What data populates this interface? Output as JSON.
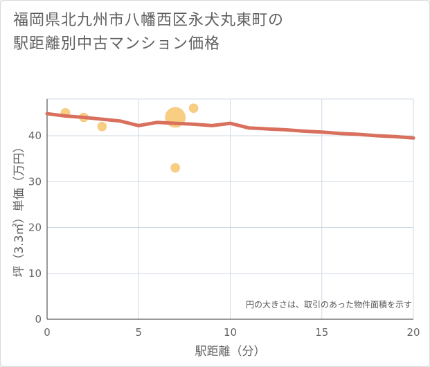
{
  "title_line1": "福岡県北九州市八幡西区永犬丸東町の",
  "title_line2": "駅距離別中古マンション価格",
  "chart_data": {
    "type": "scatter",
    "title": "福岡県北九州市八幡西区永犬丸東町の駅距離別中古マンション価格",
    "xlabel": "駅距離（分）",
    "ylabel": "坪（3.3㎡）単価（万円）",
    "xlim": [
      0,
      20
    ],
    "ylim": [
      0,
      48
    ],
    "xticks": [
      0,
      5,
      10,
      15,
      20
    ],
    "yticks": [
      0,
      10,
      20,
      30,
      40
    ],
    "grid": true,
    "note": "円の大きさは、取引のあった物件面積を示す",
    "points": [
      {
        "x": 1,
        "y": 45,
        "size": 1
      },
      {
        "x": 2,
        "y": 44,
        "size": 1
      },
      {
        "x": 3,
        "y": 42,
        "size": 1
      },
      {
        "x": 7,
        "y": 44,
        "size": 5
      },
      {
        "x": 7,
        "y": 33,
        "size": 1
      },
      {
        "x": 8,
        "y": 46,
        "size": 1
      }
    ],
    "trend": {
      "name": "trend",
      "x": [
        0,
        1,
        2,
        3,
        4,
        5,
        6,
        7,
        8,
        9,
        10,
        11,
        12,
        13,
        14,
        15,
        16,
        17,
        18,
        19,
        20
      ],
      "y": [
        44.8,
        44.3,
        44.0,
        43.6,
        43.2,
        42.2,
        42.9,
        42.7,
        42.5,
        42.2,
        42.7,
        41.7,
        41.5,
        41.3,
        41.0,
        40.8,
        40.5,
        40.3,
        40.0,
        39.8,
        39.5
      ]
    },
    "colors": {
      "point": "#f5b94f",
      "point_stroke": "#eea23a",
      "trend": "#d9705e",
      "grid": "#cfd9e3"
    }
  }
}
